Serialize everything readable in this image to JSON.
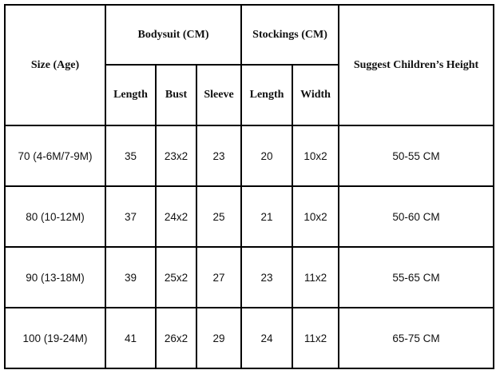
{
  "table": {
    "header": {
      "size": "Size (Age)",
      "bodysuit": "Bodysuit (CM)",
      "stockings": "Stockings (CM)",
      "height": "Suggest Children’s Height",
      "subheaders": [
        "Length",
        "Bust",
        "Sleeve",
        "Length",
        "Width"
      ]
    },
    "rows": [
      [
        "70 (4-6M/7-9M)",
        "35",
        "23x2",
        "23",
        "20",
        "10x2",
        "50-55 CM"
      ],
      [
        "80 (10-12M)",
        "37",
        "24x2",
        "25",
        "21",
        "10x2",
        "50-60 CM"
      ],
      [
        "90 (13-18M)",
        "39",
        "25x2",
        "27",
        "23",
        "11x2",
        "55-65 CM"
      ],
      [
        "100 (19-24M)",
        "41",
        "26x2",
        "29",
        "24",
        "11x2",
        "65-75 CM"
      ]
    ]
  }
}
